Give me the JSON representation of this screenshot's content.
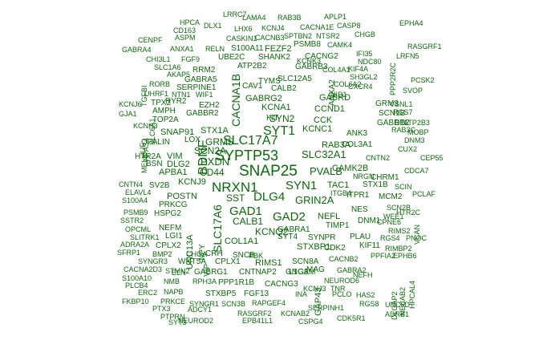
{
  "cloud": {
    "word_color": "#0b6a0b",
    "background": "#ffffff",
    "words": [
      {
        "text": "SNAP25"
      },
      {
        "text": "SYPTP53"
      },
      {
        "text": "SLC17A7"
      },
      {
        "text": "NRXN1"
      },
      {
        "text": "SYN1"
      },
      {
        "text": "GAD1"
      },
      {
        "text": "GAD2"
      },
      {
        "text": "DLG4"
      },
      {
        "text": "GRIN2A"
      },
      {
        "text": "PVALB"
      },
      {
        "text": "SLC32A1"
      },
      {
        "text": "SYT1"
      },
      {
        "text": "BDNF"
      },
      {
        "text": "CACNA1B"
      },
      {
        "text": "SLC17A6"
      },
      {
        "text": "PXDN"
      },
      {
        "text": "GRM5"
      },
      {
        "text": "SCN2A"
      },
      {
        "text": "CD44"
      },
      {
        "text": "KCNQ2"
      },
      {
        "text": "CALB1"
      },
      {
        "text": "SST"
      },
      {
        "text": "NEFL"
      },
      {
        "text": "TAC1"
      },
      {
        "text": "STXBP1"
      },
      {
        "text": "SYN2"
      },
      {
        "text": "KCNA1"
      },
      {
        "text": "KCNC1"
      },
      {
        "text": "CCK"
      },
      {
        "text": "RAB3A"
      },
      {
        "text": "CAMK2B"
      },
      {
        "text": "CCND1"
      },
      {
        "text": "STX1A"
      },
      {
        "text": "SNAP91"
      },
      {
        "text": "GABRG2"
      },
      {
        "text": "GABRD"
      },
      {
        "text": "SLC12A5"
      },
      {
        "text": "CALB2"
      },
      {
        "text": "ATP2B2"
      },
      {
        "text": "GABRB3"
      },
      {
        "text": "EZH2"
      },
      {
        "text": "SERPINE1"
      },
      {
        "text": "RRM2"
      },
      {
        "text": "UBE2C"
      },
      {
        "text": "SHANK2"
      },
      {
        "text": "CACNG2"
      },
      {
        "text": "COL1A1"
      },
      {
        "text": "GABRA1"
      },
      {
        "text": "TIMP1"
      },
      {
        "text": "SYT4"
      },
      {
        "text": "SYNPR"
      },
      {
        "text": "PLAU"
      },
      {
        "text": "RIMS1"
      },
      {
        "text": "SCN8A"
      },
      {
        "text": "CDK2"
      },
      {
        "text": "KIF11"
      },
      {
        "text": "GNG3"
      },
      {
        "text": "MAG"
      },
      {
        "text": "NES"
      },
      {
        "text": "DNM1"
      },
      {
        "text": "ITPR1"
      },
      {
        "text": "MCM2"
      },
      {
        "text": "STX1B"
      },
      {
        "text": "CHRM1"
      },
      {
        "text": "POSTN"
      },
      {
        "text": "KCNJ9"
      },
      {
        "text": "VIM"
      },
      {
        "text": "APBA1"
      },
      {
        "text": "DLG2"
      },
      {
        "text": "HTR2A"
      },
      {
        "text": "BSN"
      },
      {
        "text": "OPALIN"
      },
      {
        "text": "LOX"
      },
      {
        "text": "UNC13A"
      },
      {
        "text": "NPY"
      },
      {
        "text": "VIP"
      },
      {
        "text": "CRH"
      },
      {
        "text": "LGI1"
      },
      {
        "text": "NEFM"
      },
      {
        "text": "CPLX2"
      },
      {
        "text": "WNT5A"
      },
      {
        "text": "CPLX1"
      },
      {
        "text": "SNCB"
      },
      {
        "text": "CNTNAP2"
      },
      {
        "text": "GABRG1"
      },
      {
        "text": "PPP1R1B"
      },
      {
        "text": "CACNG3"
      },
      {
        "text": "L1CAM"
      },
      {
        "text": "FGF13"
      },
      {
        "text": "STXBP5"
      },
      {
        "text": "RAPGEF4"
      },
      {
        "text": "NEUROD6"
      },
      {
        "text": "SCN1B"
      },
      {
        "text": "GRM3"
      },
      {
        "text": "VSNL1"
      },
      {
        "text": "COL3A1"
      },
      {
        "text": "ANK3"
      },
      {
        "text": "GABRB2"
      },
      {
        "text": "DTL"
      },
      {
        "text": "RAB3C"
      },
      {
        "text": "CNTN2"
      },
      {
        "text": "CEP55"
      },
      {
        "text": "GABBR2"
      },
      {
        "text": "GABRA5"
      },
      {
        "text": "TOP2A"
      },
      {
        "text": "AMPH"
      },
      {
        "text": "RYR2"
      },
      {
        "text": "TPX2"
      },
      {
        "text": "TYMS"
      },
      {
        "text": "KIT"
      },
      {
        "text": "CAV1"
      },
      {
        "text": "KCNH3"
      },
      {
        "text": "NRGN"
      },
      {
        "text": "ITGB4"
      },
      {
        "text": "PRKCG"
      },
      {
        "text": "HSPG2"
      },
      {
        "text": "SV2B"
      },
      {
        "text": "CNTN4"
      },
      {
        "text": "ELAVL4"
      },
      {
        "text": "S100A4"
      },
      {
        "text": "PSMB9"
      },
      {
        "text": "SSTR2"
      },
      {
        "text": "OPCML"
      },
      {
        "text": "SLITRK1"
      },
      {
        "text": "ADRA2A"
      },
      {
        "text": "SFRP1"
      },
      {
        "text": "BMP2"
      },
      {
        "text": "CHGA"
      },
      {
        "text": "PBK"
      },
      {
        "text": "SYNGR3"
      },
      {
        "text": "CACNA2D3"
      },
      {
        "text": "STMN2"
      },
      {
        "text": "ELN"
      },
      {
        "text": "S100A10"
      },
      {
        "text": "NMB"
      },
      {
        "text": "RPH3A"
      },
      {
        "text": "PLCB4"
      },
      {
        "text": "ERC2"
      },
      {
        "text": "NAPB"
      },
      {
        "text": "FKBP10"
      },
      {
        "text": "PRKCE"
      },
      {
        "text": "PTX3"
      },
      {
        "text": "ADCY1"
      },
      {
        "text": "PTPRN"
      },
      {
        "text": "SYT3"
      },
      {
        "text": "NEUROD2"
      },
      {
        "text": "SYNGR1"
      },
      {
        "text": "SCN3B"
      },
      {
        "text": "RASGRF2"
      },
      {
        "text": "EPB41L1"
      },
      {
        "text": "KCNAB2"
      },
      {
        "text": "CSPG4"
      },
      {
        "text": "INA"
      },
      {
        "text": "GAP43"
      },
      {
        "text": "KCNJ3"
      },
      {
        "text": "TNR"
      },
      {
        "text": "PCLO"
      },
      {
        "text": "SERPINH1"
      },
      {
        "text": "HAS2"
      },
      {
        "text": "RGS8"
      },
      {
        "text": "UNC5D"
      },
      {
        "text": "ADRB1"
      },
      {
        "text": "CDK5R1"
      },
      {
        "text": "GABRA2"
      },
      {
        "text": "NEFH"
      },
      {
        "text": "CACNB2"
      },
      {
        "text": "PPFIA2"
      },
      {
        "text": "EPHB6"
      },
      {
        "text": "RIMBP2"
      },
      {
        "text": "DLGAP2"
      },
      {
        "text": "NECAB2"
      },
      {
        "text": "HPCAL4"
      },
      {
        "text": "RGS4"
      },
      {
        "text": "PNOC"
      },
      {
        "text": "RIMS2"
      },
      {
        "text": "CPNE6"
      },
      {
        "text": "HTR2C"
      },
      {
        "text": "SCN2B"
      },
      {
        "text": "WEE1"
      },
      {
        "text": "VCAN"
      },
      {
        "text": "SCIN"
      },
      {
        "text": "PCLAF"
      },
      {
        "text": "CDCA7"
      },
      {
        "text": "CUX2"
      },
      {
        "text": "DNM3"
      },
      {
        "text": "MOBP"
      },
      {
        "text": "ATP2B3"
      },
      {
        "text": "RGS7"
      },
      {
        "text": "SVOP"
      },
      {
        "text": "PCSK2"
      },
      {
        "text": "LRFN5"
      },
      {
        "text": "RASGRF1"
      },
      {
        "text": "PPP2R2C"
      },
      {
        "text": "EPHA4"
      },
      {
        "text": "APLP1"
      },
      {
        "text": "CASP8"
      },
      {
        "text": "CHGB"
      },
      {
        "text": "CACNA1E"
      },
      {
        "text": "CAMK4"
      },
      {
        "text": "IFI35"
      },
      {
        "text": "NDC80"
      },
      {
        "text": "KIF4A"
      },
      {
        "text": "SH3GL2"
      },
      {
        "text": "COL6A2"
      },
      {
        "text": "NID1"
      },
      {
        "text": "CXCR4"
      },
      {
        "text": "ANXA2"
      },
      {
        "text": "COL4A1"
      },
      {
        "text": "KCNK3"
      },
      {
        "text": "PSMB8"
      },
      {
        "text": "SPTBN2"
      },
      {
        "text": "NTSR2"
      },
      {
        "text": "RAB3B"
      },
      {
        "text": "LAMA4"
      },
      {
        "text": "LRRC7"
      },
      {
        "text": "HPCA"
      },
      {
        "text": "DLX1"
      },
      {
        "text": "CD163"
      },
      {
        "text": "LHX6"
      },
      {
        "text": "KCNJ4"
      },
      {
        "text": "ASPM"
      },
      {
        "text": "CASKIN1"
      },
      {
        "text": "CACNB3"
      },
      {
        "text": "CENPF"
      },
      {
        "text": "ANXA1"
      },
      {
        "text": "RELN"
      },
      {
        "text": "S100A11"
      },
      {
        "text": "FEZF2"
      },
      {
        "text": "GABRA4"
      },
      {
        "text": "CHI3L1"
      },
      {
        "text": "FGF9"
      },
      {
        "text": "SLC1A6"
      },
      {
        "text": "AKAP5"
      },
      {
        "text": "TGFBI"
      },
      {
        "text": "RORB"
      },
      {
        "text": "UHRF1"
      },
      {
        "text": "NTN1"
      },
      {
        "text": "WIF1"
      },
      {
        "text": "KCNJ6"
      },
      {
        "text": "GJA1"
      },
      {
        "text": "SLC6A1"
      },
      {
        "text": "LIF"
      },
      {
        "text": "NPAS4"
      },
      {
        "text": "MELK"
      }
    ]
  }
}
